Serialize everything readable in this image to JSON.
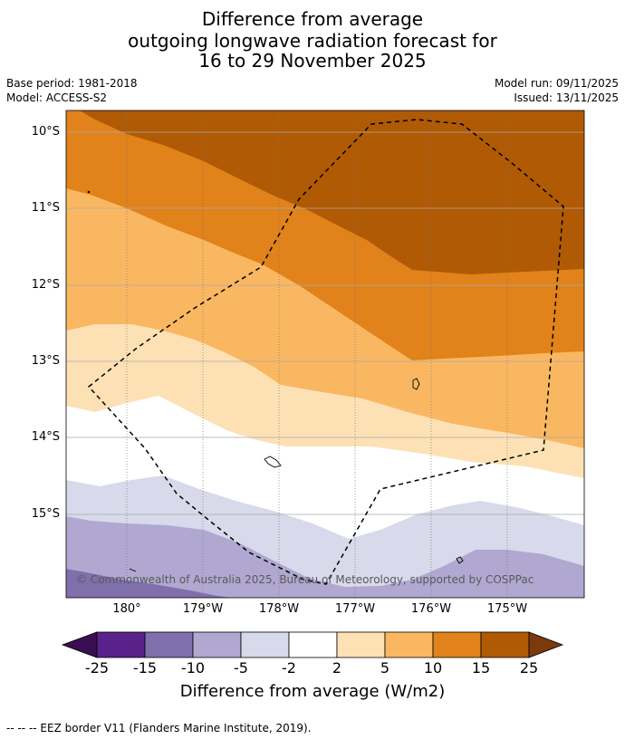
{
  "title": {
    "line1": "Difference from average",
    "line2": "outgoing longwave radiation forecast for",
    "line3": "16 to 29 November 2025"
  },
  "meta": {
    "base_period": "Base period: 1981-2018",
    "model": "Model: ACCESS-S2",
    "model_run": "Model run: 09/11/2025",
    "issued": "Issued: 13/11/2025"
  },
  "map": {
    "lat_labels": [
      "10°S",
      "11°S",
      "12°S",
      "13°S",
      "14°S",
      "15°S"
    ],
    "lon_labels": [
      "180°",
      "179°W",
      "178°W",
      "177°W",
      "176°W",
      "175°W"
    ],
    "copyright": "© Commonwealth of Australia 2025, Bureau of Meteorology, supported by COSPPac"
  },
  "colorbar": {
    "labels": [
      "-25",
      "-15",
      "-10",
      "-5",
      "-2",
      "2",
      "5",
      "10",
      "15",
      "25"
    ],
    "title": "Difference from average (W/m2)",
    "colors": {
      "below_min": "#3a0f52",
      "bins": [
        "#58228a",
        "#7f6fab",
        "#b0a8d1",
        "#d8d9ea",
        "#ffffff",
        "#fde1b5",
        "#fab762",
        "#e1821a",
        "#b05a05"
      ],
      "above_max": "#7a3a0b"
    }
  },
  "footnote": "--  --  -- EEZ border V11 (Flanders Marine Institute, 2019)."
}
